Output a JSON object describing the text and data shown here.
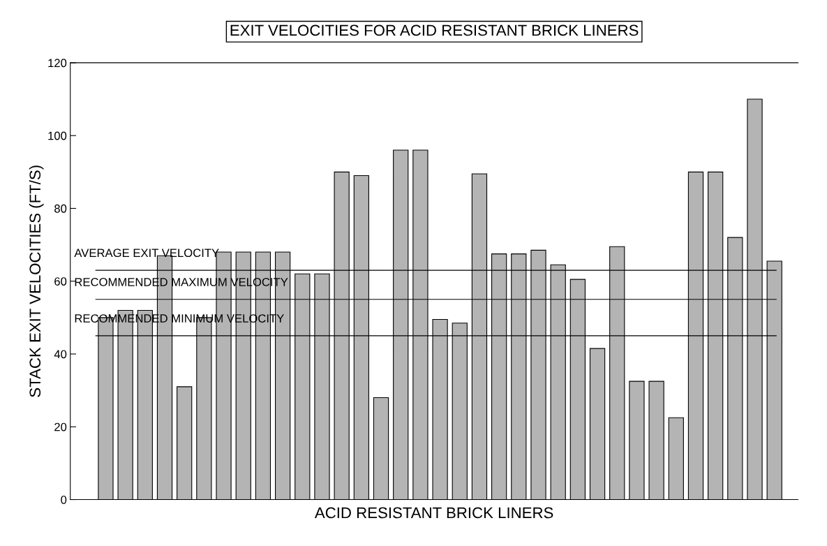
{
  "chart_data": {
    "type": "bar",
    "title": "EXIT VELOCITIES FOR ACID RESISTANT BRICK LINERS",
    "xlabel": "ACID RESISTANT BRICK LINERS",
    "ylabel": "STACK EXIT VELOCITIES (FT/S)",
    "categories": [
      null,
      null,
      null,
      null,
      null,
      null,
      null,
      null,
      null,
      null,
      null,
      null,
      null,
      null,
      null,
      null,
      null,
      null,
      null,
      null,
      null,
      null,
      null,
      null,
      null,
      null,
      null,
      null,
      null,
      null,
      null,
      null,
      null,
      null,
      null
    ],
    "values": [
      50,
      52,
      52,
      67,
      31,
      50,
      68,
      68,
      68,
      68,
      62,
      62,
      90,
      89,
      28,
      96,
      96,
      49.5,
      48.5,
      89.5,
      67.5,
      67.5,
      68.5,
      64.5,
      60.5,
      41.5,
      69.5,
      32.5,
      32.5,
      22.5,
      90,
      90,
      72,
      110,
      65.5
    ],
    "color": "#b4b4b4",
    "ylim": [
      0,
      120
    ],
    "yticks": [
      0,
      20,
      40,
      60,
      80,
      100,
      120
    ],
    "grid": false,
    "legend": false,
    "ref_lines": [
      {
        "axis": "y",
        "value": 63,
        "label": "AVERAGE EXIT VELOCITY",
        "color": "#000000",
        "line_style": "solid"
      },
      {
        "axis": "y",
        "value": 55,
        "label": "RECOMMENDED MAXIMUM VELOCITY",
        "color": "#000000",
        "line_style": "solid"
      },
      {
        "axis": "y",
        "value": 45,
        "label": "RECOMMENDED MINIMUM VELOCITY",
        "color": "#000000",
        "line_style": "solid"
      }
    ]
  }
}
